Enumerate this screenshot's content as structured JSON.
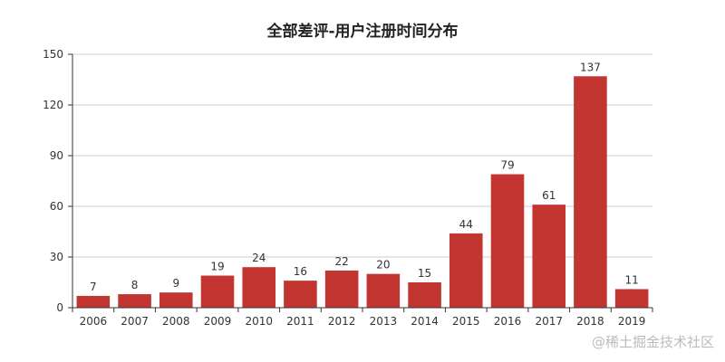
{
  "chart_data": {
    "type": "bar",
    "title": "全部差评-用户注册时间分布",
    "xlabel": "",
    "ylabel": "",
    "categories": [
      "2006",
      "2007",
      "2008",
      "2009",
      "2010",
      "2011",
      "2012",
      "2013",
      "2014",
      "2015",
      "2016",
      "2017",
      "2018",
      "2019"
    ],
    "values": [
      7,
      8,
      9,
      19,
      24,
      16,
      22,
      20,
      15,
      44,
      79,
      61,
      137,
      11
    ],
    "ylim": [
      0,
      150
    ],
    "yticks": [
      0,
      30,
      60,
      90,
      120,
      150
    ],
    "grid": true,
    "legend": null,
    "data_labels": true,
    "bar_color": "#c23531"
  },
  "watermark": "@稀土掘金技术社区"
}
